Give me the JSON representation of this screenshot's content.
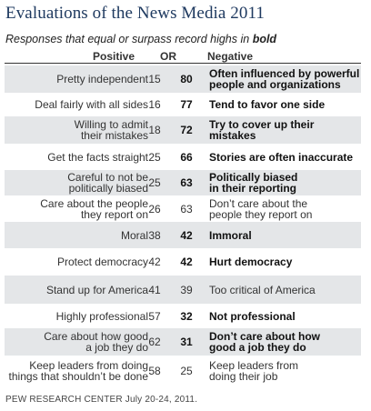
{
  "title": "Evaluations of the News Media 2011",
  "subtitle_prefix": "Responses that equal or surpass record highs in ",
  "subtitle_bold": "bold",
  "source": "PEW RESEARCH CENTER July 20-24, 2011.",
  "chart_data": {
    "type": "table",
    "columns": [
      "Positive",
      "",
      "OR",
      "Negative"
    ],
    "rows": [
      {
        "positive": "Pretty independent",
        "positive_value": 15,
        "negative_value": 80,
        "negative": "Often influenced by powerful people and organizations",
        "bold_side": "negative"
      },
      {
        "positive": "Deal fairly with all sides",
        "positive_value": 16,
        "negative_value": 77,
        "negative": "Tend to favor one side",
        "bold_side": "negative"
      },
      {
        "positive": "Willing to admit their mistakes",
        "positive_value": 18,
        "negative_value": 72,
        "negative": "Try to cover up their mistakes",
        "bold_side": "negative"
      },
      {
        "positive": "Get the facts straight",
        "positive_value": 25,
        "negative_value": 66,
        "negative": "Stories are often inaccurate",
        "bold_side": "negative"
      },
      {
        "positive": "Careful to not be politically biased",
        "positive_value": 25,
        "negative_value": 63,
        "negative": "Politically biased in their reporting",
        "bold_side": "negative"
      },
      {
        "positive": "Care about the people they report on",
        "positive_value": 26,
        "negative_value": 63,
        "negative": "Don’t care about the people they report on",
        "bold_side": "none"
      },
      {
        "positive": "Moral",
        "positive_value": 38,
        "negative_value": 42,
        "negative": "Immoral",
        "bold_side": "negative"
      },
      {
        "positive": "Protect democracy",
        "positive_value": 42,
        "negative_value": 42,
        "negative": "Hurt democracy",
        "bold_side": "negative"
      },
      {
        "positive": "Stand up for America",
        "positive_value": 41,
        "negative_value": 39,
        "negative": "Too critical of America",
        "bold_side": "none"
      },
      {
        "positive": "Highly professional",
        "positive_value": 57,
        "negative_value": 32,
        "negative": "Not professional",
        "bold_side": "negative"
      },
      {
        "positive": "Care about how good a job they do",
        "positive_value": 62,
        "negative_value": 31,
        "negative": "Don’t care about how good a job they do",
        "bold_side": "negative"
      },
      {
        "positive": "Keep leaders from doing things that shouldn’t be done",
        "positive_value": 58,
        "negative_value": 25,
        "negative": "Keep leaders from doing their job",
        "bold_side": "none"
      }
    ],
    "row_shading": [
      true,
      false,
      true,
      false,
      true,
      false,
      true,
      false,
      true,
      false,
      true,
      false
    ]
  },
  "colors": {
    "title": "#1f3a60",
    "shade": "#e4e6e8"
  }
}
